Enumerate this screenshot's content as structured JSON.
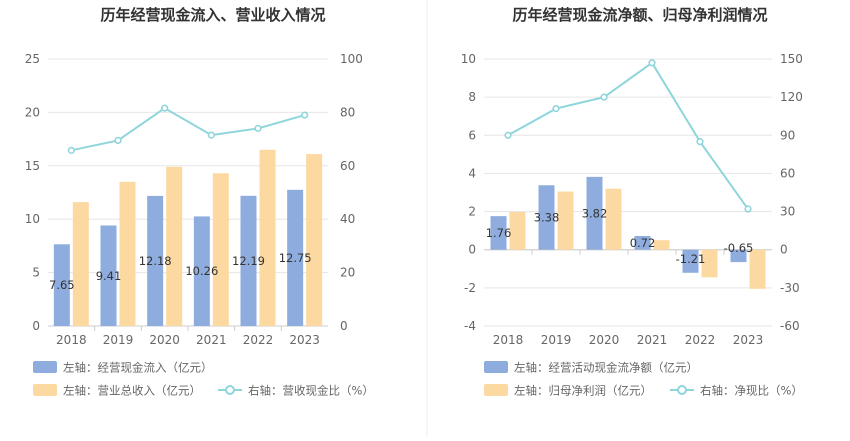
{
  "colors": {
    "bar_primary": "#8eacdd",
    "bar_secondary": "#fdd9a2",
    "line": "#8fd5dc",
    "grid": "#e6e6e6",
    "divider": "#eeeeee"
  },
  "chart_data": [
    {
      "type": "bar",
      "title": "历年经营现金流入、营业收入情况",
      "categories": [
        "2018",
        "2019",
        "2020",
        "2021",
        "2022",
        "2023"
      ],
      "left_axis": {
        "min": 0,
        "max": 25,
        "ticks": [
          "0",
          "5",
          "10",
          "15",
          "20",
          "25"
        ]
      },
      "right_axis": {
        "min": 0,
        "max": 100,
        "ticks": [
          "0",
          "20",
          "40",
          "60",
          "80",
          "100"
        ]
      },
      "series": [
        {
          "name": "左轴：经营现金流入（亿元）",
          "kind": "bar",
          "axis": "left",
          "values": [
            7.65,
            9.41,
            12.18,
            10.26,
            12.19,
            12.75
          ],
          "labels": [
            "7.65",
            "9.41",
            "12.18",
            "10.26",
            "12.19",
            "12.75"
          ]
        },
        {
          "name": "左轴：营业总收入（亿元）",
          "kind": "bar",
          "axis": "left",
          "values": [
            11.6,
            13.5,
            14.9,
            14.3,
            16.5,
            16.1
          ]
        },
        {
          "name": "右轴：营收现金比（%）",
          "kind": "line",
          "axis": "right",
          "values": [
            65.8,
            69.5,
            81.6,
            71.5,
            74.0,
            79.0
          ]
        }
      ]
    },
    {
      "type": "bar",
      "title": "历年经营现金流净额、归母净利润情况",
      "categories": [
        "2018",
        "2019",
        "2020",
        "2021",
        "2022",
        "2023"
      ],
      "left_axis": {
        "min": -4,
        "max": 10,
        "ticks": [
          "-4",
          "-2",
          "0",
          "2",
          "4",
          "6",
          "8",
          "10"
        ]
      },
      "right_axis": {
        "min": -60,
        "max": 150,
        "ticks": [
          "-60",
          "-30",
          "0",
          "30",
          "60",
          "90",
          "120",
          "150"
        ]
      },
      "series": [
        {
          "name": "左轴：经营活动现金流净额（亿元）",
          "kind": "bar",
          "axis": "left",
          "values": [
            1.76,
            3.38,
            3.82,
            0.72,
            -1.21,
            -0.65
          ],
          "labels": [
            "1.76",
            "3.38",
            "3.82",
            "0.72",
            "-1.21",
            "-0.65"
          ]
        },
        {
          "name": "左轴：归母净利润（亿元）",
          "kind": "bar",
          "axis": "left",
          "values": [
            1.98,
            3.05,
            3.2,
            0.5,
            -1.45,
            -2.05
          ]
        },
        {
          "name": "右轴：净现比（%）",
          "kind": "line",
          "axis": "right",
          "values": [
            90.0,
            111.0,
            120.0,
            147.0,
            85.0,
            32.0
          ]
        }
      ]
    }
  ]
}
